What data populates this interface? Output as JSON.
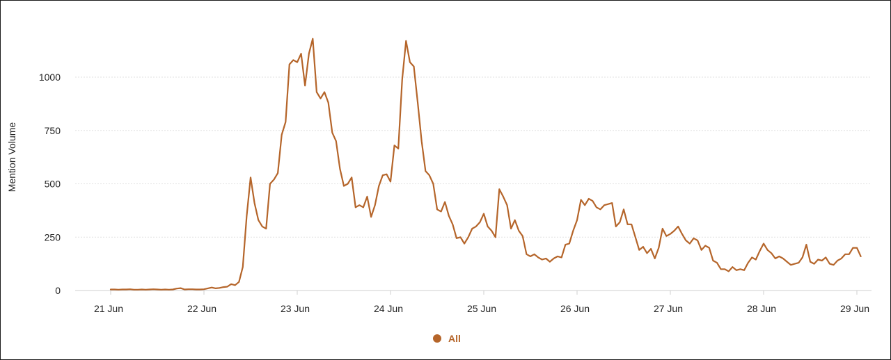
{
  "chart_data": {
    "type": "line",
    "title": "",
    "xlabel": "",
    "ylabel": "Mention Volume",
    "ylim": [
      0,
      1250
    ],
    "yticks": [
      0,
      250,
      500,
      750,
      1000
    ],
    "xticks": [
      "21 Jun",
      "22 Jun",
      "23 Jun",
      "24 Jun",
      "25 Jun",
      "26 Jun",
      "27 Jun",
      "28 Jun",
      "29 Jun"
    ],
    "x_start": "21 Jun 00:00",
    "x_step_hours": 1,
    "grid": "horizontal",
    "legend": "bottom-center",
    "color": "#b5652a",
    "series": [
      {
        "name": "All",
        "values": [
          5,
          5,
          4,
          5,
          5,
          6,
          4,
          4,
          5,
          4,
          5,
          6,
          5,
          4,
          5,
          4,
          5,
          9,
          11,
          5,
          6,
          6,
          5,
          5,
          6,
          10,
          14,
          10,
          12,
          16,
          18,
          30,
          25,
          40,
          110,
          350,
          530,
          410,
          330,
          300,
          290,
          500,
          520,
          550,
          730,
          790,
          1060,
          1080,
          1070,
          1110,
          960,
          1110,
          1180,
          930,
          900,
          930,
          880,
          740,
          700,
          570,
          490,
          500,
          530,
          390,
          400,
          390,
          440,
          345,
          400,
          490,
          540,
          545,
          510,
          680,
          665,
          990,
          1170,
          1070,
          1050,
          880,
          700,
          560,
          540,
          500,
          380,
          370,
          415,
          350,
          310,
          245,
          250,
          220,
          250,
          290,
          300,
          320,
          360,
          300,
          280,
          250,
          475,
          440,
          400,
          290,
          330,
          280,
          255,
          170,
          160,
          170,
          155,
          145,
          150,
          135,
          150,
          160,
          155,
          215,
          220,
          280,
          330,
          425,
          400,
          430,
          420,
          390,
          380,
          400,
          405,
          410,
          300,
          320,
          380,
          310,
          310,
          250,
          190,
          205,
          175,
          195,
          150,
          200,
          290,
          255,
          265,
          280,
          300,
          265,
          235,
          220,
          245,
          235,
          190,
          210,
          200,
          140,
          130,
          100,
          100,
          90,
          110,
          95,
          100,
          95,
          130,
          155,
          145,
          185,
          220,
          190,
          175,
          150,
          160,
          150,
          135,
          120,
          125,
          130,
          155,
          215,
          135,
          125,
          145,
          140,
          155,
          125,
          120,
          140,
          150,
          170,
          170,
          200,
          200,
          160
        ]
      }
    ]
  }
}
